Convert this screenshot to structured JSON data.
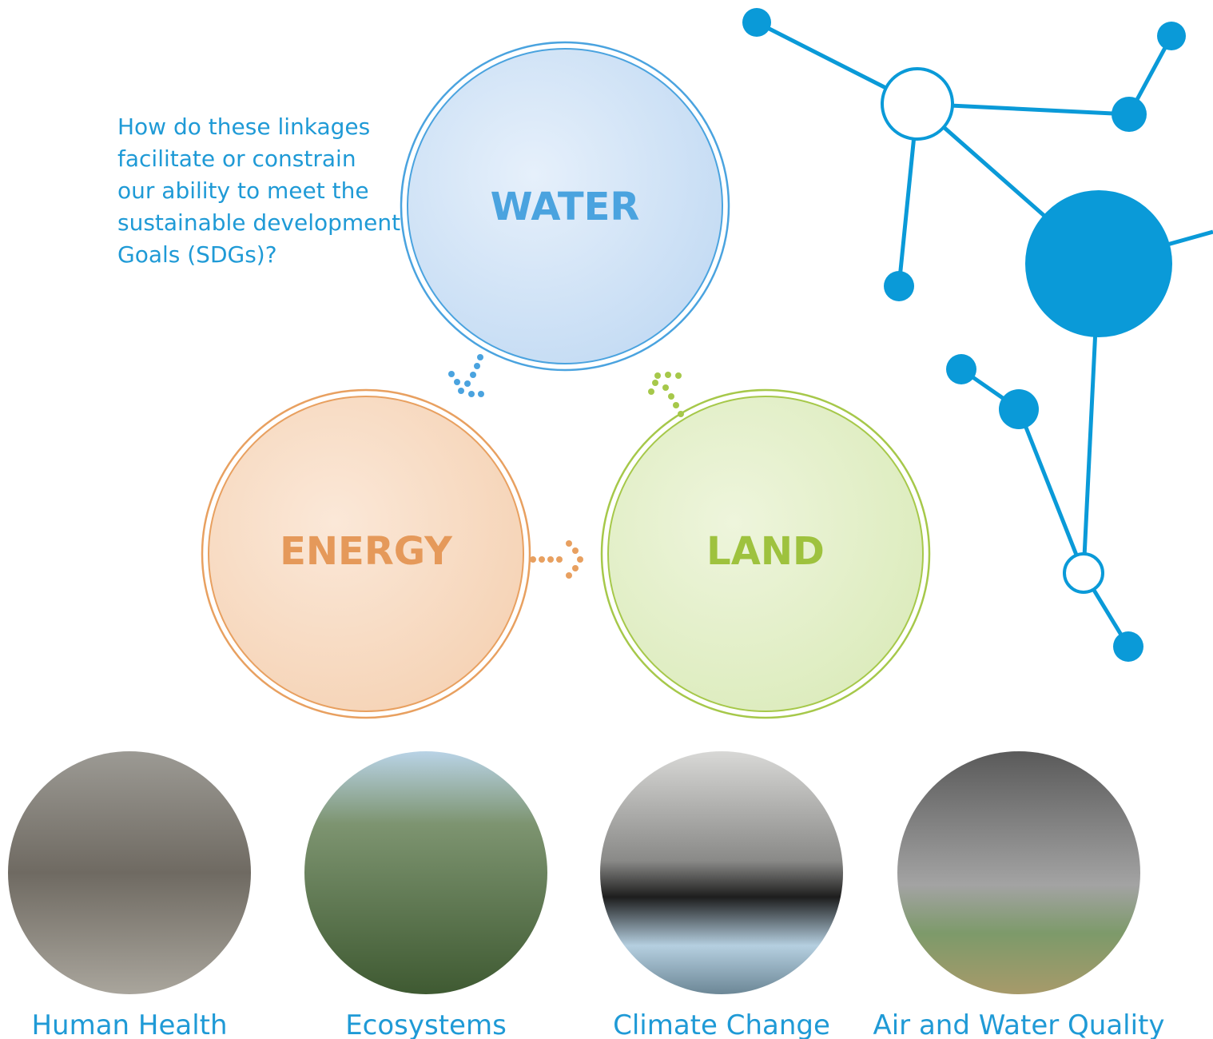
{
  "question": {
    "lines": [
      "How do these linkages",
      "facilitate or constrain",
      "our ability to meet the",
      "sustainable development",
      "Goals (SDGs)?"
    ]
  },
  "nodes": [
    {
      "label": "WATER"
    },
    {
      "label": "ENERGY"
    },
    {
      "label": "LAND"
    }
  ],
  "impacts": [
    {
      "caption": "Human Health"
    },
    {
      "caption": "Ecosystems"
    },
    {
      "caption": "Climate Change"
    },
    {
      "caption": "Air and Water Quality"
    }
  ]
}
